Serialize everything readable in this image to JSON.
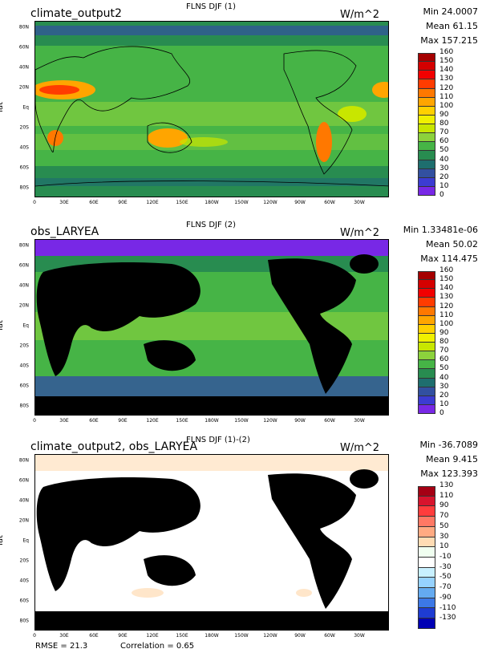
{
  "panels": [
    {
      "title_left": "climate_output2",
      "title_center": "FLNS DJF (1)",
      "units": "W/m^2",
      "min": "Min 24.0007",
      "mean": "Mean 61.15",
      "max": "Max 157.215",
      "ylabel": "lat",
      "colorbar": [
        "160",
        "150",
        "140",
        "130",
        "120",
        "110",
        "100",
        "90",
        "80",
        "70",
        "60",
        "50",
        "40",
        "30",
        "20",
        "10",
        "0"
      ],
      "colors": [
        "#a50000",
        "#d40000",
        "#f20000",
        "#ff3c00",
        "#ff7800",
        "#ffa500",
        "#ffd000",
        "#f0f000",
        "#c8e600",
        "#8cd23c",
        "#46b446",
        "#288c50",
        "#1e6e6e",
        "#3250a0",
        "#3c3cd2",
        "#7828e6"
      ]
    },
    {
      "title_left": "obs_LARYEA",
      "title_center": "FLNS DJF (2)",
      "units": "W/m^2",
      "min": "Min 1.33481e-06",
      "mean": "Mean 50.02",
      "max": "Max 114.475",
      "ylabel": "lat",
      "colorbar": [
        "160",
        "150",
        "140",
        "130",
        "120",
        "110",
        "100",
        "90",
        "80",
        "70",
        "60",
        "50",
        "40",
        "30",
        "20",
        "10",
        "0"
      ],
      "colors": [
        "#a50000",
        "#d40000",
        "#f20000",
        "#ff3c00",
        "#ff7800",
        "#ffa500",
        "#ffd000",
        "#f0f000",
        "#c8e600",
        "#8cd23c",
        "#46b446",
        "#288c50",
        "#1e6e6e",
        "#3250a0",
        "#3c3cd2",
        "#7828e6"
      ]
    },
    {
      "title_left": "climate_output2, obs_LARYEA",
      "title_center": "FLNS DJF (1)-(2)",
      "units": "W/m^2",
      "min": "Min -36.7089",
      "mean": "Mean 9.415",
      "max": "Max 123.393",
      "ylabel": "lat",
      "colorbar": [
        "130",
        "110",
        "90",
        "70",
        "50",
        "30",
        "10",
        "-10",
        "-30",
        "-50",
        "-70",
        "-90",
        "-110",
        "-130"
      ],
      "colors": [
        "#a50014",
        "#d7142d",
        "#ff3c3c",
        "#ff7864",
        "#ffaa82",
        "#ffdcb4",
        "#f0fff0",
        "#ffffff",
        "#c8f0ff",
        "#96d2ff",
        "#64aaf0",
        "#3c78e6",
        "#1e3cd2",
        "#0000b4"
      ]
    }
  ],
  "lat_ticks": [
    "80N",
    "60N",
    "40N",
    "20N",
    "Eq",
    "20S",
    "40S",
    "60S",
    "80S"
  ],
  "lon_ticks": [
    "0",
    "30E",
    "60E",
    "90E",
    "120E",
    "150E",
    "180W",
    "150W",
    "120W",
    "90W",
    "60W",
    "30W"
  ],
  "footer": {
    "rmse": "RMSE = 21.3",
    "correlation": "Correlation = 0.65"
  }
}
